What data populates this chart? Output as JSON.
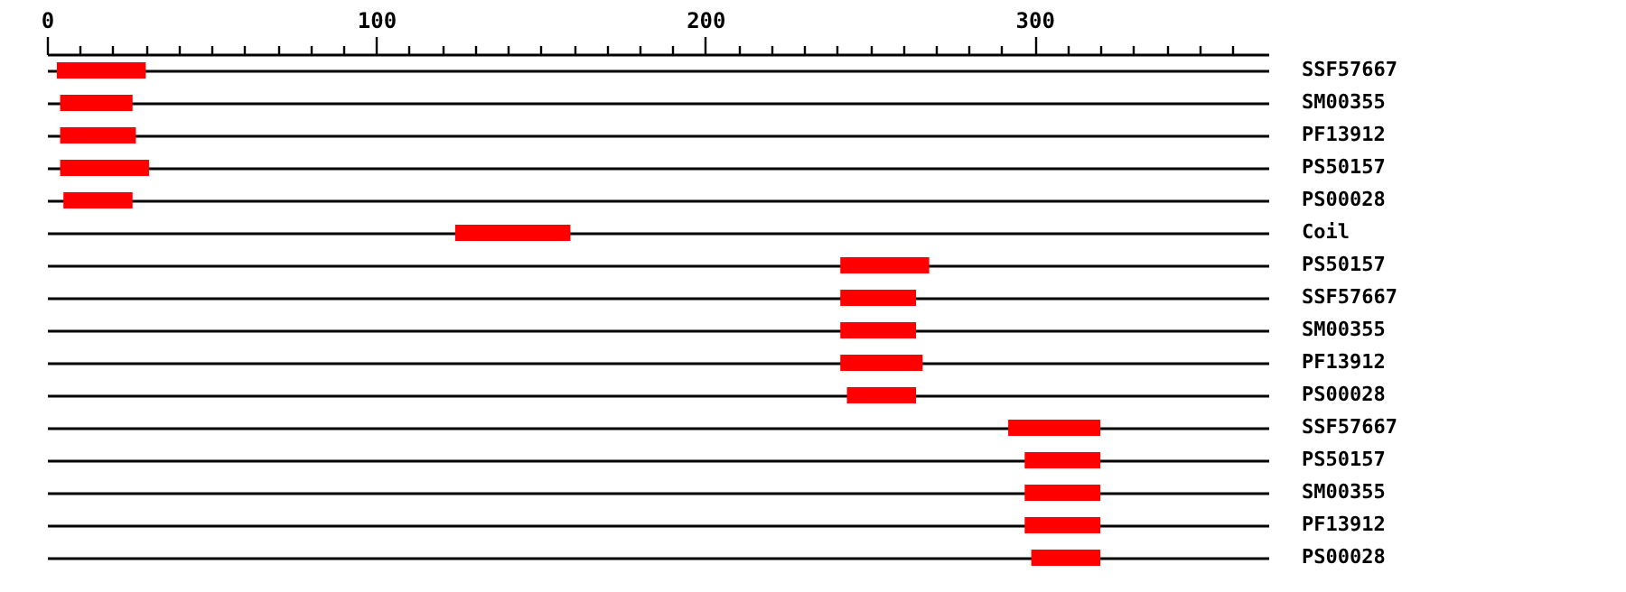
{
  "chart_data": {
    "type": "bar",
    "orientation": "horizontal",
    "categories": [
      "SSF57667",
      "SM00355",
      "PF13912",
      "PS50157",
      "PS00028",
      "Coil",
      "PS50157",
      "SSF57667",
      "SM00355",
      "PF13912",
      "PS00028",
      "SSF57667",
      "PS50157",
      "SM00355",
      "PF13912",
      "PS00028"
    ],
    "base": [
      3,
      4,
      4,
      4,
      5,
      124,
      241,
      241,
      241,
      241,
      243,
      292,
      297,
      297,
      297,
      299
    ],
    "values": [
      27,
      22,
      23,
      27,
      21,
      35,
      27,
      23,
      23,
      25,
      21,
      28,
      23,
      23,
      23,
      21
    ],
    "color": "#ff0000",
    "xlim": [
      0,
      371
    ],
    "xticks": [
      0,
      {
        "value": 10,
        "label": null
      },
      {
        "value": 20,
        "label": null
      },
      {
        "value": 30,
        "label": null
      },
      {
        "value": 40,
        "label": null
      },
      {
        "value": 50,
        "label": null
      },
      {
        "value": 60,
        "label": null
      },
      {
        "value": 70,
        "label": null
      },
      {
        "value": 80,
        "label": null
      },
      {
        "value": 90,
        "label": null
      },
      100,
      {
        "value": 110,
        "label": null
      },
      {
        "value": 120,
        "label": null
      },
      {
        "value": 130,
        "label": null
      },
      {
        "value": 140,
        "label": null
      },
      {
        "value": 150,
        "label": null
      },
      {
        "value": 160,
        "label": null
      },
      {
        "value": 170,
        "label": null
      },
      {
        "value": 180,
        "label": null
      },
      {
        "value": 190,
        "label": null
      },
      200,
      {
        "value": 210,
        "label": null
      },
      {
        "value": 220,
        "label": null
      },
      {
        "value": 230,
        "label": null
      },
      {
        "value": 240,
        "label": null
      },
      {
        "value": 250,
        "label": null
      },
      {
        "value": 260,
        "label": null
      },
      {
        "value": 270,
        "label": null
      },
      {
        "value": 280,
        "label": null
      },
      {
        "value": 290,
        "label": null
      },
      300,
      {
        "value": 310,
        "label": null
      },
      {
        "value": 320,
        "label": null
      },
      {
        "value": 330,
        "label": null
      },
      {
        "value": 340,
        "label": null
      },
      {
        "value": 350,
        "label": null
      },
      {
        "value": 360,
        "label": null
      }
    ],
    "grid": "y"
  }
}
